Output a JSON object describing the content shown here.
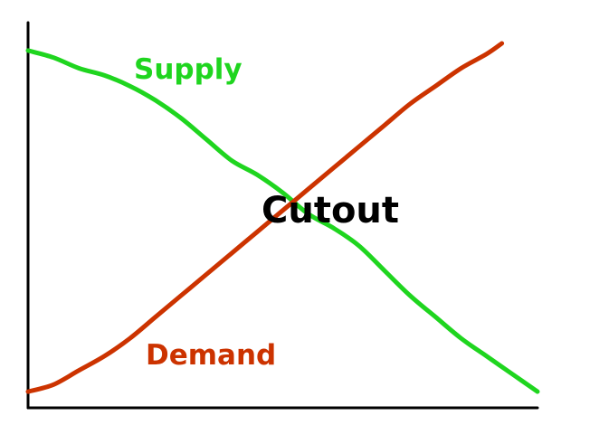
{
  "chart_data": {
    "type": "line",
    "title": "",
    "xlabel": "",
    "ylabel": "",
    "grid": false,
    "xlim": [
      0,
      100
    ],
    "ylim": [
      0,
      100
    ],
    "series": [
      {
        "name": "Supply",
        "color": "#1fd51f",
        "x": [
          0,
          5,
          10,
          15,
          20,
          25,
          30,
          35,
          40,
          45,
          50,
          55,
          60,
          65,
          70,
          75,
          80,
          85,
          90,
          95,
          100
        ],
        "y": [
          98,
          96,
          93,
          91,
          88,
          84,
          79,
          73,
          67,
          63,
          58,
          52,
          48,
          43,
          36,
          29,
          23,
          17,
          12,
          7,
          2
        ]
      },
      {
        "name": "Demand",
        "color": "#cc3300",
        "x": [
          0,
          5,
          10,
          15,
          20,
          25,
          30,
          35,
          40,
          45,
          50,
          55,
          60,
          65,
          70,
          75,
          80,
          85,
          90,
          93
        ],
        "y": [
          2,
          4,
          8,
          12,
          17,
          23,
          29,
          35,
          41,
          47,
          53,
          59,
          65,
          71,
          77,
          83,
          88,
          93,
          97,
          100
        ]
      }
    ],
    "labels": {
      "supply": "Supply",
      "demand": "Demand",
      "annotation": "Cutout"
    }
  }
}
